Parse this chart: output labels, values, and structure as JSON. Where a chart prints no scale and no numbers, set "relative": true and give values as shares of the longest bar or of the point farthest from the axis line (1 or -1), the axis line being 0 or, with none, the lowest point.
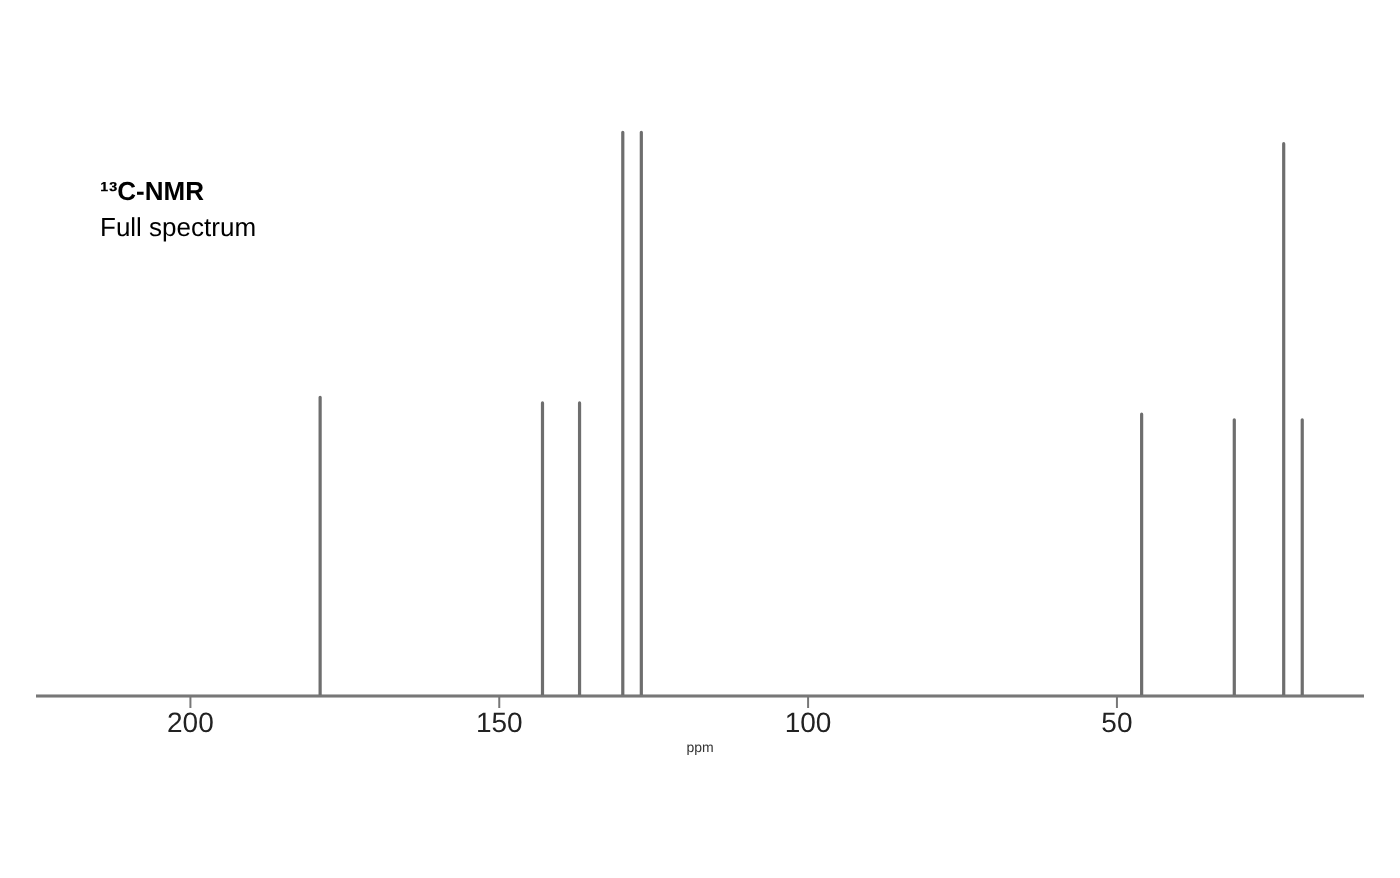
{
  "chart_data": {
    "type": "line",
    "title": "¹³C-NMR",
    "subtitle": "Full spectrum",
    "xlabel": "ppm",
    "relative": true,
    "xlim": [
      225,
      10
    ],
    "xticks": [
      200,
      150,
      100,
      50
    ],
    "grid": false,
    "legend": false,
    "marker": "none",
    "line_style": "solid",
    "series": [
      {
        "color": "#6e6e6e",
        "x": [
          225,
          179,
          179,
          179,
          143,
          143,
          143,
          137,
          137,
          137,
          130,
          130,
          130,
          127,
          127,
          127,
          46,
          46,
          46,
          31,
          31,
          31,
          23,
          23,
          23,
          20,
          20,
          20,
          10
        ],
        "values": [
          0,
          0,
          0.53,
          0,
          0,
          0.52,
          0,
          0,
          0.52,
          0,
          0,
          1,
          0,
          0,
          1,
          0,
          0,
          0.5,
          0,
          0,
          0.49,
          0,
          0,
          0.98,
          0,
          0,
          0.49,
          0,
          0
        ]
      }
    ]
  }
}
